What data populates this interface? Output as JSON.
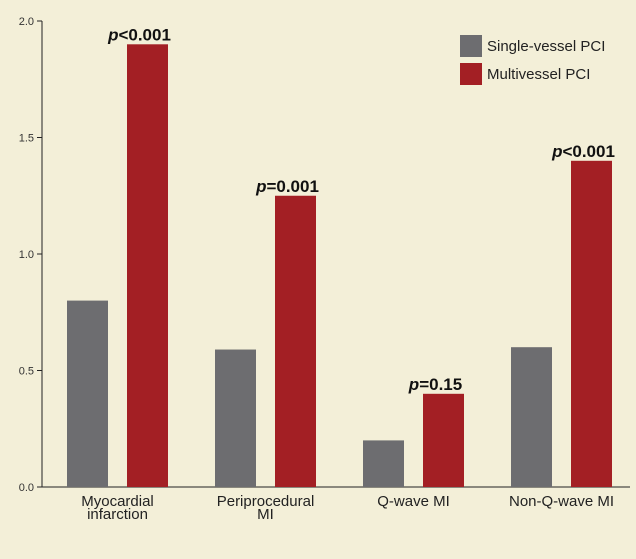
{
  "chart_data": {
    "type": "bar",
    "categories": [
      [
        "Myocardial",
        "infarction"
      ],
      [
        "Periprocedural",
        "MI"
      ],
      [
        "Q-wave MI"
      ],
      [
        "Non-Q-wave MI"
      ]
    ],
    "series": [
      {
        "name": "Single-vessel PCI",
        "color": "#6d6d70",
        "values": [
          0.8,
          0.59,
          0.2,
          0.6
        ]
      },
      {
        "name": "Multivessel PCI",
        "color": "#a31f24",
        "values": [
          1.9,
          1.25,
          0.4,
          1.4
        ]
      }
    ],
    "annotations": [
      {
        "prefix": "p",
        "text": "<0.001"
      },
      {
        "prefix": "p",
        "text": "=0.001"
      },
      {
        "prefix": "p",
        "text": "=0.15"
      },
      {
        "prefix": "p",
        "text": "<0.001"
      }
    ],
    "yticks": [
      "0.0",
      "0.5",
      "1.0",
      "1.5",
      "2.0"
    ],
    "ylim": [
      0,
      2.0
    ],
    "grid": false,
    "legend_position": "top-right"
  }
}
